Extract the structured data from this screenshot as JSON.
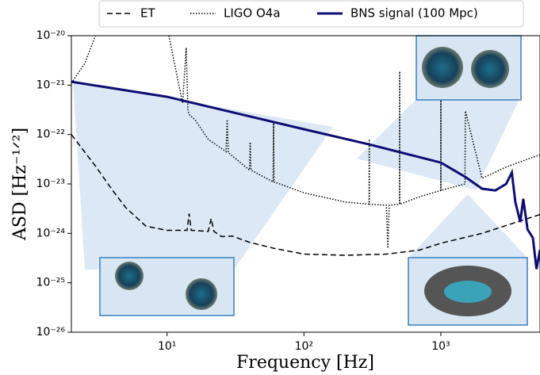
{
  "chart_data": {
    "type": "line",
    "xlabel": "Frequency [Hz]",
    "ylabel": "ASD [Hz⁻¹ᐟ²]",
    "log_x": true,
    "log_y": true,
    "xlim": [
      2,
      5300
    ],
    "ylim": [
      1e-26,
      1e-20
    ],
    "xticks": [
      {
        "value": 10,
        "label": "10¹"
      },
      {
        "value": 100,
        "label": "10²"
      },
      {
        "value": 1000,
        "label": "10³"
      }
    ],
    "yticks": [
      {
        "value": 1e-26,
        "label": "10⁻²⁶"
      },
      {
        "value": 1e-25,
        "label": "10⁻²⁵"
      },
      {
        "value": 1e-24,
        "label": "10⁻²⁴"
      },
      {
        "value": 1e-23,
        "label": "10⁻²³"
      },
      {
        "value": 1e-22,
        "label": "10⁻²²"
      },
      {
        "value": 1e-21,
        "label": "10⁻²¹"
      },
      {
        "value": 1e-20,
        "label": "10⁻²⁰"
      }
    ],
    "legend": "top",
    "series": [
      {
        "name": "ET",
        "color": "#000000",
        "linestyle": "dashed",
        "x": [
          2,
          3,
          4,
          5,
          7,
          10,
          14,
          14.5,
          15,
          20,
          21,
          22,
          25,
          30,
          40,
          60,
          100,
          200,
          400,
          700,
          1000,
          2000,
          5300
        ],
        "values": [
          1e-22,
          2.3e-23,
          7.4e-24,
          3.3e-24,
          1.4e-24,
          1.15e-24,
          1.15e-24,
          2.5e-24,
          1.15e-24,
          1.1e-24,
          2e-24,
          1.1e-24,
          8.6e-25,
          8.8e-25,
          6.6e-25,
          5e-25,
          3.8e-25,
          3.6e-25,
          3.8e-25,
          4.6e-25,
          6.3e-25,
          1e-24,
          2.4e-24
        ]
      },
      {
        "name": "LIGO O4a",
        "color": "#000000",
        "linestyle": "dotted",
        "x": [
          2,
          2.5,
          3,
          null,
          10.3,
          13,
          13.8,
          14.2,
          14.6,
          16,
          20,
          27,
          27.5,
          28,
          40,
          40.5,
          41,
          59.5,
          60,
          60.5,
          100,
          200,
          299,
          300,
          301,
          400,
          410,
          420,
          499,
          500,
          501,
          700,
          999,
          1000,
          1001,
          1500,
          1510,
          2000,
          3000,
          5300
        ],
        "values": [
          1.1e-21,
          2.7e-21,
          1e-20,
          null,
          1e-20,
          4.3e-22,
          5.7e-21,
          3e-22,
          2.5e-22,
          2e-22,
          8e-23,
          4.5e-23,
          2e-22,
          4.3e-23,
          1.9e-23,
          7e-23,
          1.9e-23,
          1.1e-23,
          1.7e-22,
          1.1e-23,
          6.6e-24,
          4.3e-24,
          3.9e-24,
          8e-23,
          3.9e-24,
          3.7e-24,
          5e-25,
          3.7e-24,
          3.9e-24,
          1.9e-21,
          3.9e-24,
          5.5e-24,
          7.4e-24,
          1.5e-21,
          7.4e-24,
          1e-23,
          3e-22,
          1.3e-23,
          2.2e-23,
          3.9e-23
        ]
      },
      {
        "name": "BNS signal (100 Mpc)",
        "color": "#0d0d73",
        "linestyle": "solid",
        "x": [
          2,
          10,
          100,
          300,
          1000,
          1500,
          2000,
          2500,
          3000,
          3300,
          3500,
          3800,
          4000,
          4300,
          4700,
          5000,
          5300
        ],
        "values": [
          1.17e-21,
          5.8e-22,
          1.28e-22,
          6.3e-23,
          2.7e-23,
          1.4e-23,
          8e-24,
          7.4e-24,
          1e-23,
          1.7e-23,
          4.3e-24,
          1.7e-24,
          5e-24,
          1.2e-24,
          8.1e-25,
          1.9e-25,
          4.6e-25
        ]
      }
    ]
  }
}
